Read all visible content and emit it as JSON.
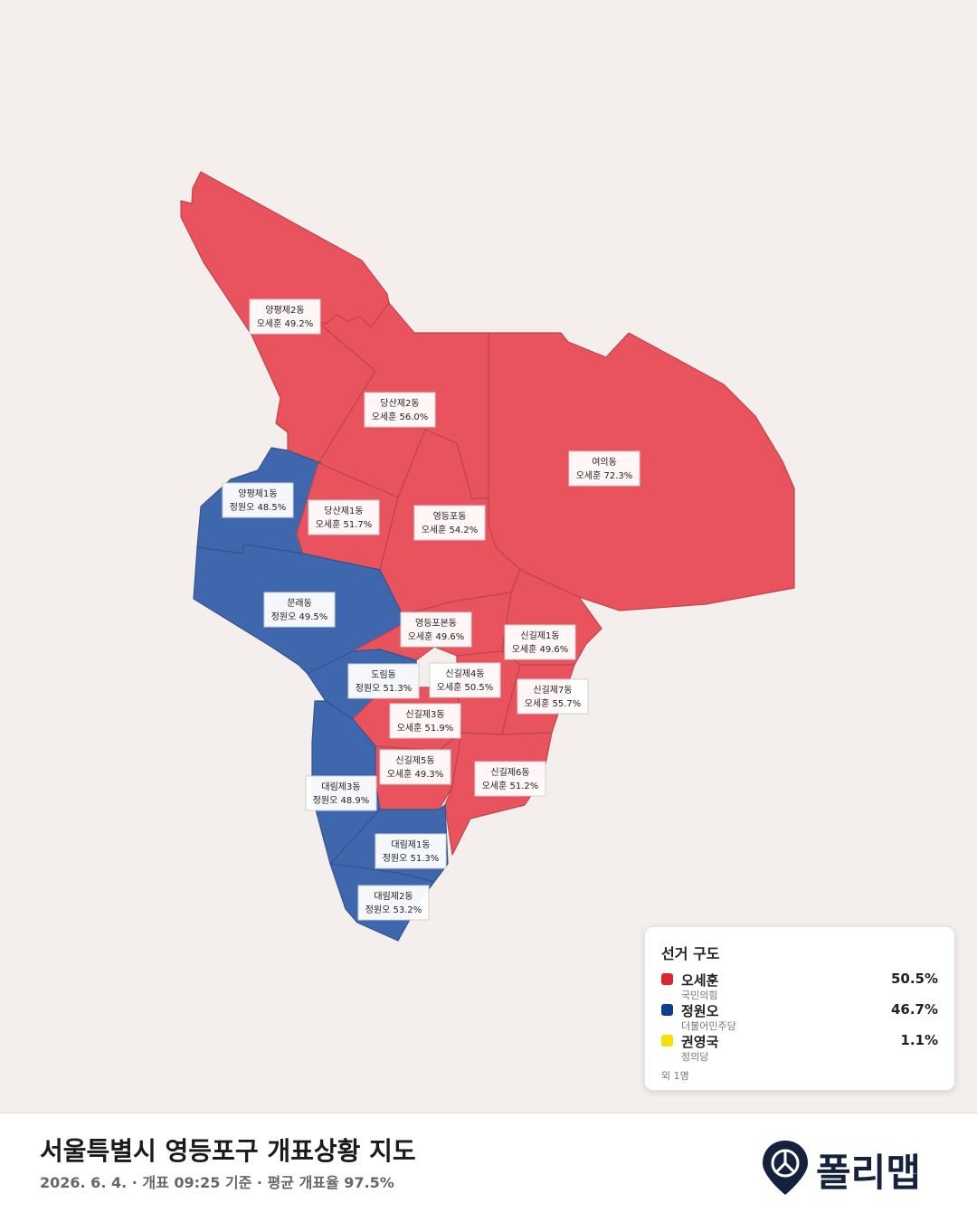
{
  "districts": [
    {
      "name": "양평제2동",
      "result": "오세훈 49.2%",
      "color": "#e9535d"
    },
    {
      "name": "당산제2동",
      "result": "오세훈 56.0%",
      "color": "#e9535d"
    },
    {
      "name": "여의동",
      "result": "오세훈 72.3%",
      "color": "#e9535d"
    },
    {
      "name": "양평제1동",
      "result": "정원오 48.5%",
      "color": "#3e67ad"
    },
    {
      "name": "당산제1동",
      "result": "오세훈 51.7%",
      "color": "#e9535d"
    },
    {
      "name": "영등포동",
      "result": "오세훈 54.2%",
      "color": "#e9535d"
    },
    {
      "name": "문래동",
      "result": "정원오 49.5%",
      "color": "#3e67ad"
    },
    {
      "name": "영등포본동",
      "result": "오세훈 49.6%",
      "color": "#e9535d"
    },
    {
      "name": "신길제1동",
      "result": "오세훈 49.6%",
      "color": "#e9535d"
    },
    {
      "name": "도림동",
      "result": "정원오 51.3%",
      "color": "#3e67ad"
    },
    {
      "name": "신길제4동",
      "result": "오세훈 50.5%",
      "color": "#e9535d"
    },
    {
      "name": "신길제7동",
      "result": "오세훈 55.7%",
      "color": "#e9535d"
    },
    {
      "name": "신길제3동",
      "result": "오세훈 51.9%",
      "color": "#e9535d"
    },
    {
      "name": "신길제5동",
      "result": "오세훈 49.3%",
      "color": "#e9535d"
    },
    {
      "name": "신길제6동",
      "result": "오세훈 51.2%",
      "color": "#e9535d"
    },
    {
      "name": "대림제3동",
      "result": "정원오 48.9%",
      "color": "#3e67ad"
    },
    {
      "name": "대림제1동",
      "result": "정원오 51.3%",
      "color": "#3e67ad"
    },
    {
      "name": "대림제2동",
      "result": "정원오 53.2%",
      "color": "#3e67ad"
    }
  ],
  "legend": {
    "title": "선거 구도",
    "candidates": [
      {
        "name": "오세훈",
        "party": "국민의힘",
        "share": "50.5%",
        "color": "#e0242f"
      },
      {
        "name": "정원오",
        "party": "더불어민주당",
        "share": "46.7%",
        "color": "#0b3d91"
      },
      {
        "name": "권영국",
        "party": "정의당",
        "share": "1.1%",
        "color": "#f5e000"
      }
    ],
    "note": "외 1명"
  },
  "footer": {
    "title": "서울특별시 영등포구 개표상황 지도",
    "subtitle": "2026. 6. 4. · 개표 09:25 기준 · 평균 개표율 97.5%",
    "logo": "폴리맵"
  }
}
